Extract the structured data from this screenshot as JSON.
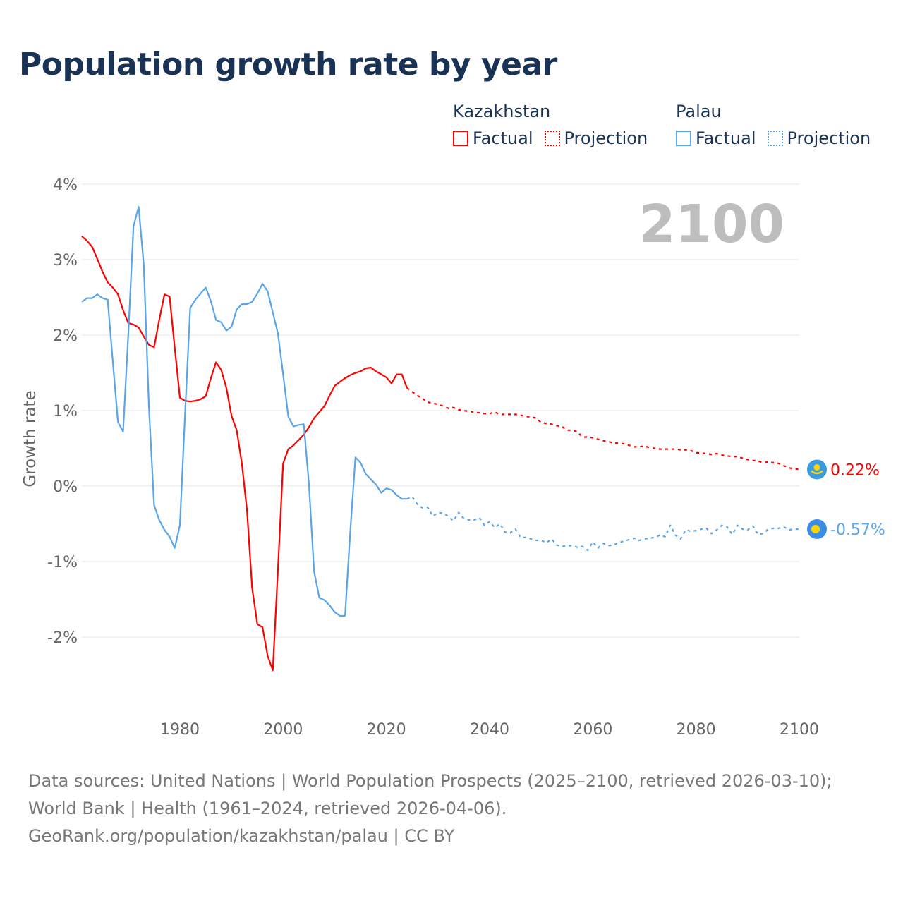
{
  "title": "Population growth rate by year",
  "legend": {
    "groups": [
      {
        "name": "Kazakhstan",
        "color": "#ff0000",
        "factual_label": "Factual",
        "projection_label": "Projection"
      },
      {
        "name": "Palau",
        "color": "#5aa5ea",
        "factual_label": "Factual",
        "projection_label": "Projection"
      }
    ]
  },
  "year_overlay": "2100",
  "footer": {
    "line1": "Data sources: United Nations | World Population Prospects (2025–2100, retrieved 2026-03-10); World Bank | Health (1961–2024, retrieved 2026-04-06).",
    "line2": "GeoRank.org/population/kazakhstan/palau | CC BY"
  },
  "chart_data": {
    "type": "line",
    "title": "Population growth rate by year",
    "xlabel": "",
    "ylabel": "Growth rate",
    "xlim": [
      1961,
      2100
    ],
    "ylim": [
      -3,
      4
    ],
    "xticks": [
      1980,
      2000,
      2020,
      2040,
      2060,
      2080,
      2100
    ],
    "xtick_labels": [
      "1980",
      "2000",
      "2020",
      "2040",
      "2060",
      "2080",
      "2100"
    ],
    "yticks": [
      4,
      3,
      2,
      1,
      0,
      -1,
      -2
    ],
    "ytick_labels": [
      "4%",
      "3%",
      "2%",
      "1%",
      "0%",
      "-1%",
      "-2%"
    ],
    "grid": true,
    "legend_position": "top-right",
    "series": [
      {
        "name": "Kazakhstan Factual",
        "country": "Kazakhstan",
        "kind": "factual",
        "color": "#ff0000",
        "x_start": 1961,
        "values": [
          3.31,
          3.25,
          3.17,
          3.01,
          2.84,
          2.7,
          2.63,
          2.54,
          2.33,
          2.16,
          2.14,
          2.1,
          1.98,
          1.87,
          1.84,
          2.2,
          2.54,
          2.51,
          1.83,
          1.17,
          1.13,
          1.12,
          1.13,
          1.15,
          1.19,
          1.43,
          1.64,
          1.54,
          1.3,
          0.93,
          0.74,
          0.3,
          -0.32,
          -1.35,
          -1.83,
          -1.87,
          -2.25,
          -2.44,
          -1.1,
          0.3,
          0.49,
          0.54,
          0.61,
          0.68,
          0.78,
          0.9,
          0.98,
          1.06,
          1.2,
          1.33,
          1.38,
          1.43,
          1.47,
          1.5,
          1.52,
          1.56,
          1.57,
          1.52,
          1.48,
          1.44,
          1.36,
          1.48,
          1.48,
          1.3
        ]
      },
      {
        "name": "Kazakhstan Projection",
        "country": "Kazakhstan",
        "kind": "projection",
        "color": "#ff0000",
        "x_start": 2024,
        "values": [
          1.3,
          1.25,
          1.2,
          1.16,
          1.11,
          1.1,
          1.08,
          1.06,
          1.03,
          1.04,
          1.01,
          1.0,
          0.99,
          0.98,
          0.97,
          0.96,
          0.96,
          0.98,
          0.95,
          0.95,
          0.95,
          0.95,
          0.94,
          0.92,
          0.92,
          0.9,
          0.84,
          0.83,
          0.82,
          0.8,
          0.79,
          0.74,
          0.74,
          0.72,
          0.65,
          0.65,
          0.64,
          0.62,
          0.6,
          0.59,
          0.57,
          0.57,
          0.56,
          0.54,
          0.52,
          0.52,
          0.53,
          0.51,
          0.5,
          0.49,
          0.49,
          0.49,
          0.49,
          0.48,
          0.48,
          0.47,
          0.44,
          0.44,
          0.43,
          0.42,
          0.43,
          0.41,
          0.4,
          0.39,
          0.39,
          0.37,
          0.35,
          0.34,
          0.33,
          0.31,
          0.32,
          0.31,
          0.3,
          0.27,
          0.24,
          0.23,
          0.22
        ],
        "end_label": "0.22%"
      },
      {
        "name": "Palau Factual",
        "country": "Palau",
        "kind": "factual",
        "color": "#5aa5ea",
        "x_start": 1961,
        "values": [
          2.44,
          2.49,
          2.49,
          2.54,
          2.49,
          2.47,
          1.65,
          0.85,
          0.72,
          2.0,
          3.44,
          3.7,
          2.93,
          1.05,
          -0.25,
          -0.45,
          -0.58,
          -0.67,
          -0.82,
          -0.52,
          0.95,
          2.36,
          2.47,
          2.55,
          2.63,
          2.45,
          2.2,
          2.17,
          2.06,
          2.11,
          2.34,
          2.41,
          2.41,
          2.44,
          2.55,
          2.68,
          2.58,
          2.3,
          2.02,
          1.48,
          0.92,
          0.79,
          0.81,
          0.82,
          0.03,
          -1.13,
          -1.48,
          -1.51,
          -1.58,
          -1.67,
          -1.72,
          -1.72,
          -0.6,
          0.38,
          0.31,
          0.16,
          0.09,
          0.02,
          -0.09,
          -0.03,
          -0.05,
          -0.12,
          -0.17,
          -0.17
        ]
      },
      {
        "name": "Palau Projection",
        "country": "Palau",
        "kind": "projection",
        "color": "#5aa5ea",
        "x_start": 2024,
        "values": [
          -0.17,
          -0.14,
          -0.24,
          -0.29,
          -0.28,
          -0.4,
          -0.35,
          -0.36,
          -0.4,
          -0.46,
          -0.35,
          -0.43,
          -0.45,
          -0.45,
          -0.42,
          -0.52,
          -0.47,
          -0.55,
          -0.5,
          -0.61,
          -0.62,
          -0.57,
          -0.68,
          -0.68,
          -0.7,
          -0.72,
          -0.72,
          -0.75,
          -0.7,
          -0.78,
          -0.8,
          -0.79,
          -0.79,
          -0.81,
          -0.8,
          -0.85,
          -0.74,
          -0.82,
          -0.76,
          -0.79,
          -0.78,
          -0.75,
          -0.73,
          -0.71,
          -0.69,
          -0.72,
          -0.7,
          -0.69,
          -0.68,
          -0.65,
          -0.67,
          -0.52,
          -0.65,
          -0.7,
          -0.58,
          -0.6,
          -0.59,
          -0.57,
          -0.56,
          -0.63,
          -0.58,
          -0.52,
          -0.54,
          -0.64,
          -0.52,
          -0.57,
          -0.58,
          -0.53,
          -0.64,
          -0.63,
          -0.57,
          -0.56,
          -0.56,
          -0.54,
          -0.58,
          -0.57,
          -0.57
        ],
        "end_label": "-0.57%"
      }
    ]
  }
}
